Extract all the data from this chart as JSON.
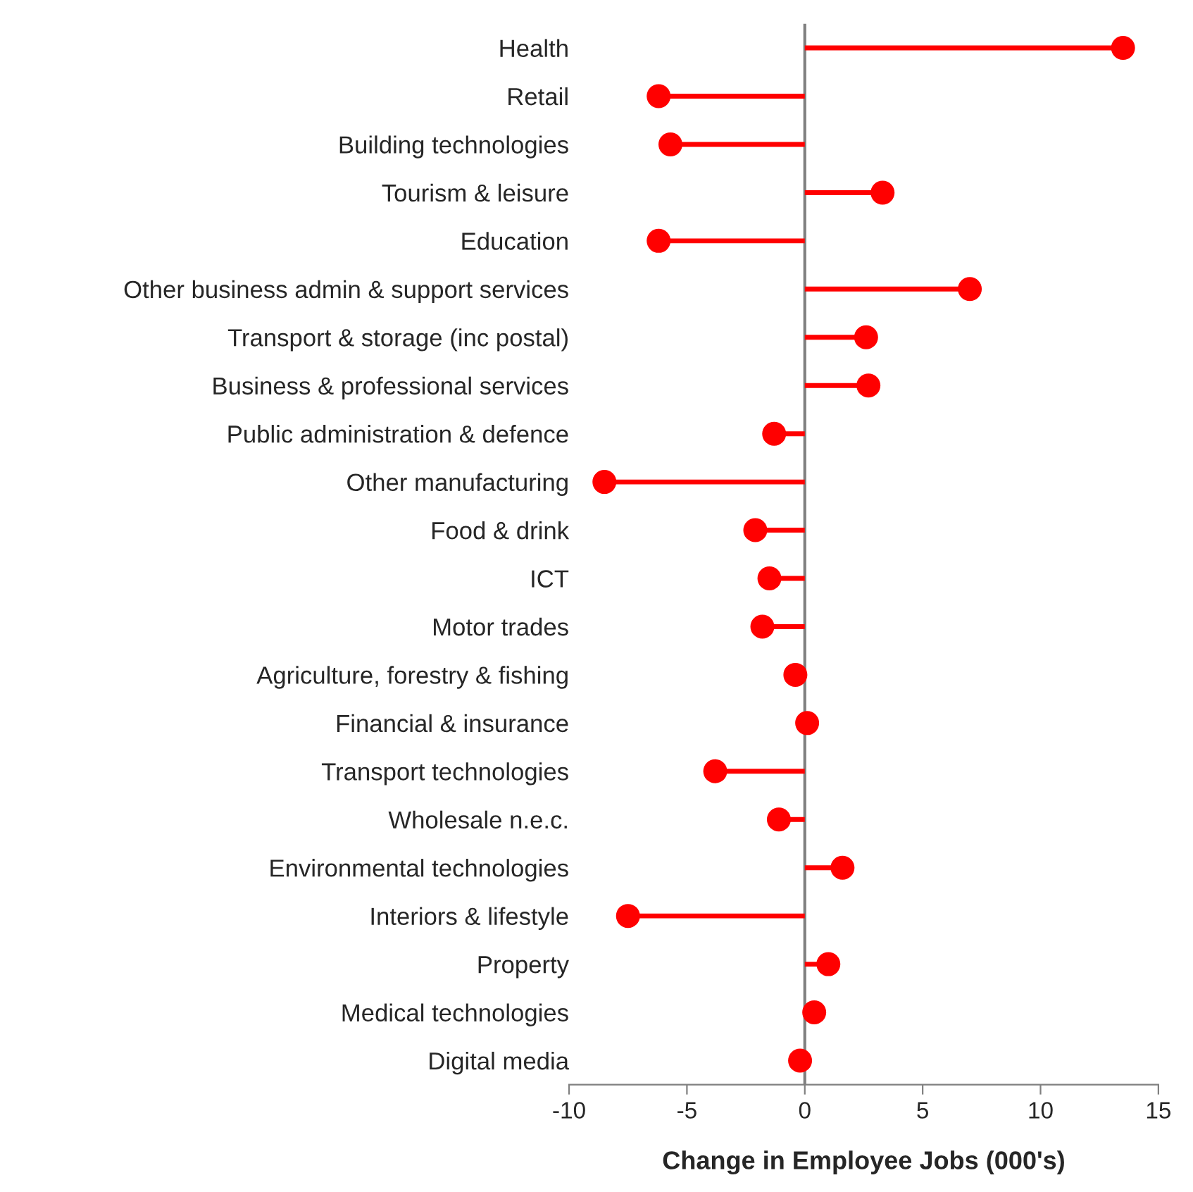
{
  "chart_data": {
    "type": "lollipop",
    "orientation": "horizontal",
    "xlabel": "Change in Employee Jobs (000's)",
    "categories": [
      "Health",
      "Retail",
      "Building technologies",
      "Tourism & leisure",
      "Education",
      "Other business admin & support services",
      "Transport & storage (inc postal)",
      "Business & professional services",
      "Public administration & defence",
      "Other manufacturing",
      "Food & drink",
      "ICT",
      "Motor trades",
      "Agriculture, forestry & fishing",
      "Financial & insurance",
      "Transport technologies",
      "Wholesale n.e.c.",
      "Environmental technologies",
      "Interiors & lifestyle",
      "Property",
      "Medical technologies",
      "Digital media"
    ],
    "series": [
      {
        "color": "#ff0000",
        "values": [
          13.5,
          -6.2,
          -5.7,
          3.3,
          -6.2,
          7.0,
          2.6,
          2.7,
          -1.3,
          -8.5,
          -2.1,
          -1.5,
          -1.8,
          -0.4,
          0.1,
          -3.8,
          -1.1,
          1.6,
          -7.5,
          1.0,
          0.4,
          -0.2
        ]
      }
    ],
    "xlim": [
      -10,
      15
    ],
    "xticks": [
      -10,
      -5,
      0,
      5,
      10,
      15
    ],
    "ref_lines": [
      {
        "axis": "x",
        "value": 0,
        "color": "#808080"
      }
    ],
    "marker": "circle",
    "grid": false,
    "legend": false
  }
}
